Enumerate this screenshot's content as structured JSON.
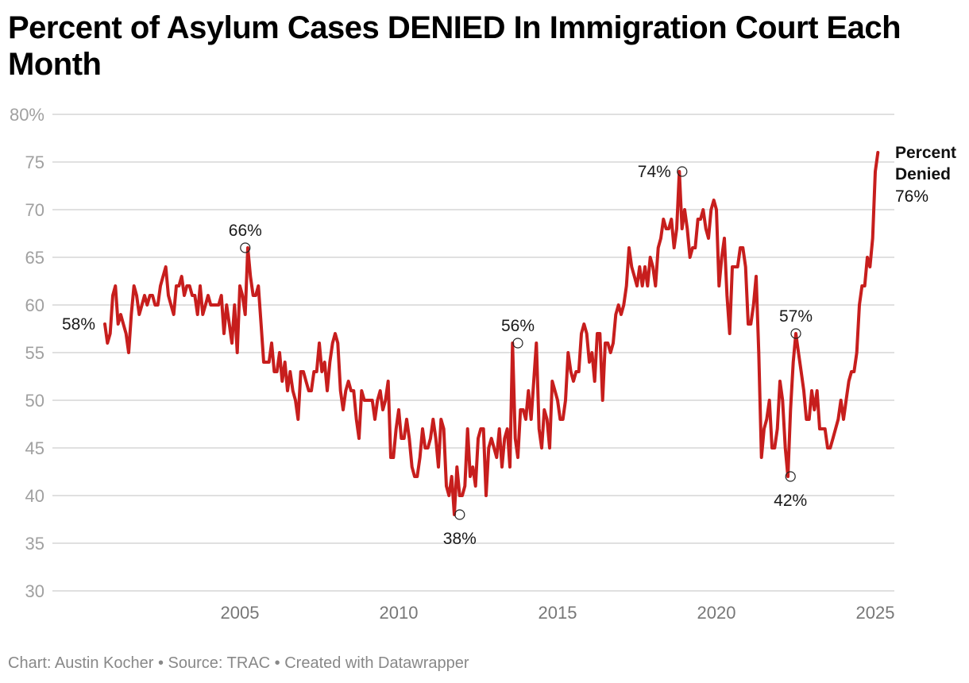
{
  "chart_data": {
    "type": "line",
    "title": "Percent of Asylum Cases DENIED In Immigration Court Each Month",
    "xlabel": "",
    "ylabel": "",
    "ylim": [
      30,
      80
    ],
    "yticks": [
      80,
      75,
      70,
      65,
      60,
      55,
      50,
      45,
      40,
      35,
      30
    ],
    "ytick_labels": [
      "80%",
      "75",
      "70",
      "65",
      "60",
      "55",
      "50",
      "45",
      "40",
      "35",
      "30"
    ],
    "xlim": [
      2000.0,
      2025.6
    ],
    "xticks": [
      2005,
      2010,
      2015,
      2020,
      2025
    ],
    "xtick_labels": [
      "2005",
      "2010",
      "2015",
      "2020",
      "2025"
    ],
    "grid": true,
    "x_start": 2000.75,
    "x_step_months": 1,
    "series": [
      {
        "name": "Percent Denied",
        "color": "#c71e1d",
        "values": [
          58,
          56,
          57,
          61,
          62,
          58,
          59,
          58,
          57,
          55,
          59,
          62,
          61,
          59,
          60,
          61,
          60,
          61,
          61,
          60,
          60,
          62,
          63,
          64,
          61,
          60,
          59,
          62,
          62,
          63,
          61,
          62,
          62,
          61,
          61,
          59,
          62,
          59,
          60,
          61,
          60,
          60,
          60,
          60,
          61,
          57,
          60,
          58,
          56,
          60,
          55,
          62,
          61,
          59,
          66,
          63,
          61,
          61,
          62,
          58,
          54,
          54,
          54,
          56,
          53,
          53,
          55,
          52,
          54,
          51,
          53,
          51,
          50,
          48,
          53,
          53,
          52,
          51,
          51,
          53,
          53,
          56,
          53,
          54,
          51,
          54,
          56,
          57,
          56,
          51,
          49,
          51,
          52,
          51,
          51,
          48,
          46,
          51,
          50,
          50,
          50,
          50,
          48,
          50,
          51,
          49,
          50,
          52,
          44,
          44,
          47,
          49,
          46,
          46,
          48,
          46,
          43,
          42,
          42,
          44,
          47,
          45,
          45,
          46,
          48,
          46,
          43,
          48,
          47,
          41,
          40,
          42,
          38,
          43,
          40,
          40,
          41,
          47,
          42,
          43,
          41,
          46,
          47,
          47,
          40,
          45,
          46,
          45,
          44,
          47,
          43,
          46,
          47,
          43,
          56,
          46,
          44,
          49,
          49,
          48,
          51,
          48,
          52,
          56,
          47,
          45,
          49,
          48,
          45,
          52,
          51,
          50,
          48,
          48,
          50,
          55,
          53,
          52,
          53,
          53,
          57,
          58,
          57,
          54,
          55,
          52,
          57,
          57,
          50,
          56,
          56,
          55,
          56,
          59,
          60,
          59,
          60,
          62,
          66,
          64,
          63,
          62,
          64,
          62,
          64,
          62,
          65,
          64,
          62,
          66,
          67,
          69,
          68,
          68,
          69,
          66,
          68,
          74,
          68,
          70,
          68,
          65,
          66,
          66,
          69,
          69,
          70,
          68,
          67,
          70,
          71,
          70,
          62,
          65,
          67,
          61,
          57,
          64,
          64,
          64,
          66,
          66,
          64,
          58,
          58,
          60,
          63,
          55,
          44,
          47,
          48,
          50,
          45,
          45,
          47,
          52,
          50,
          45,
          42,
          49,
          54,
          57,
          55,
          53,
          51,
          48,
          48,
          51,
          49,
          51,
          47,
          47,
          47,
          45,
          45,
          46,
          47,
          48,
          50,
          48,
          50,
          52,
          53,
          53,
          55,
          60,
          62,
          62,
          65,
          64,
          67,
          74,
          76
        ]
      }
    ],
    "annotations": [
      {
        "label": "58%",
        "x": 2000.75,
        "y": 58,
        "position": "left",
        "marker": false
      },
      {
        "label": "66%",
        "x": 2005.17,
        "y": 66,
        "position": "above",
        "marker": true
      },
      {
        "label": "38%",
        "x": 2011.92,
        "y": 38,
        "position": "below",
        "marker": true
      },
      {
        "label": "56%",
        "x": 2013.75,
        "y": 56,
        "position": "above",
        "marker": true
      },
      {
        "label": "74%",
        "x": 2018.92,
        "y": 74,
        "position": "left",
        "marker": true
      },
      {
        "label": "42%",
        "x": 2022.33,
        "y": 42,
        "position": "below",
        "marker": true
      },
      {
        "label": "57%",
        "x": 2022.5,
        "y": 57,
        "position": "above",
        "marker": true
      }
    ],
    "end_label": {
      "series_name_line1": "Percent",
      "series_name_line2": "Denied",
      "value": "76%"
    }
  },
  "footer": {
    "text": "Chart: Austin Kocher • Source: TRAC • Created with Datawrapper"
  }
}
